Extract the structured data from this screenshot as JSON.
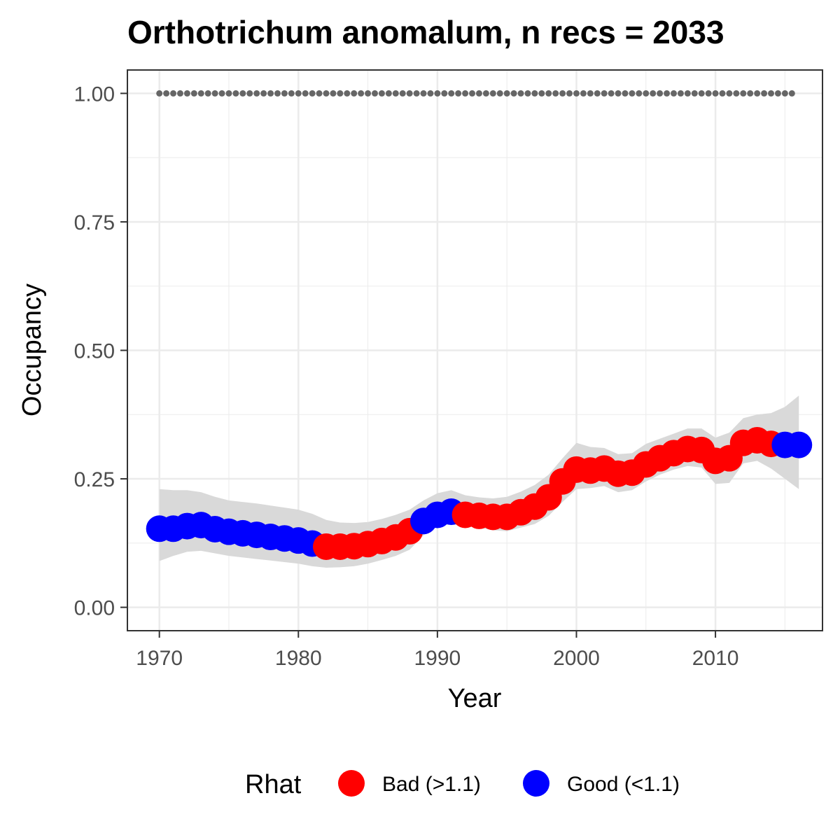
{
  "chart_data": {
    "type": "line",
    "title": "Orthotrichum anomalum, n recs = 2033",
    "xlabel": "Year",
    "ylabel": "Occupancy",
    "xlim": [
      1967.7,
      2017.7
    ],
    "ylim": [
      -0.0455,
      1.0455
    ],
    "x_ticks": [
      1970,
      1980,
      1990,
      2000,
      2010
    ],
    "x_tick_labels": [
      "1970",
      "1980",
      "1990",
      "2000",
      "2010"
    ],
    "y_ticks": [
      0,
      0.25,
      0.5,
      0.75,
      1.0
    ],
    "y_tick_labels": [
      "0.00",
      "0.25",
      "0.50",
      "0.75",
      "1.00"
    ],
    "grid": true,
    "legend_position": "bottom",
    "legend": {
      "title": "Rhat",
      "entries": [
        {
          "label": "Bad (>1.1)",
          "color": "#ff0000"
        },
        {
          "label": "Good (<1.1)",
          "color": "#0000ff"
        }
      ]
    },
    "colors": {
      "bad": "#ff0000",
      "good": "#0000ff",
      "ribbon": "#d9d9d9",
      "dots": "#666666",
      "grid": "#ebebeb",
      "panel_border": "#333333"
    },
    "occupancy": {
      "x": [
        1970,
        1971,
        1972,
        1973,
        1974,
        1975,
        1976,
        1977,
        1978,
        1979,
        1980,
        1981,
        1982,
        1983,
        1984,
        1985,
        1986,
        1987,
        1988,
        1989,
        1990,
        1991,
        1992,
        1993,
        1994,
        1995,
        1996,
        1997,
        1998,
        1999,
        2000,
        2001,
        2002,
        2003,
        2004,
        2005,
        2006,
        2007,
        2008,
        2009,
        2010,
        2011,
        2012,
        2013,
        2014,
        2015,
        2016
      ],
      "y": [
        0.153,
        0.153,
        0.158,
        0.16,
        0.152,
        0.147,
        0.144,
        0.141,
        0.137,
        0.134,
        0.13,
        0.124,
        0.118,
        0.118,
        0.119,
        0.123,
        0.129,
        0.136,
        0.148,
        0.168,
        0.18,
        0.186,
        0.18,
        0.178,
        0.176,
        0.176,
        0.185,
        0.196,
        0.214,
        0.245,
        0.268,
        0.266,
        0.27,
        0.26,
        0.262,
        0.278,
        0.29,
        0.3,
        0.308,
        0.306,
        0.285,
        0.29,
        0.32,
        0.325,
        0.318,
        0.316,
        0.316
      ],
      "rhat": [
        "good",
        "good",
        "good",
        "good",
        "good",
        "good",
        "good",
        "good",
        "good",
        "good",
        "good",
        "good",
        "bad",
        "bad",
        "bad",
        "bad",
        "bad",
        "bad",
        "bad",
        "good",
        "good",
        "good",
        "bad",
        "bad",
        "bad",
        "bad",
        "bad",
        "bad",
        "bad",
        "bad",
        "bad",
        "bad",
        "bad",
        "bad",
        "bad",
        "bad",
        "bad",
        "bad",
        "bad",
        "bad",
        "bad",
        "bad",
        "bad",
        "bad",
        "bad",
        "good",
        "good"
      ],
      "lower": [
        0.09,
        0.1,
        0.108,
        0.11,
        0.105,
        0.1,
        0.097,
        0.094,
        0.091,
        0.088,
        0.085,
        0.08,
        0.077,
        0.078,
        0.08,
        0.085,
        0.092,
        0.1,
        0.112,
        0.14,
        0.158,
        0.162,
        0.158,
        0.155,
        0.15,
        0.148,
        0.155,
        0.162,
        0.178,
        0.205,
        0.23,
        0.232,
        0.236,
        0.224,
        0.228,
        0.245,
        0.258,
        0.268,
        0.275,
        0.272,
        0.24,
        0.242,
        0.28,
        0.285,
        0.27,
        0.25,
        0.23
      ],
      "upper": [
        0.23,
        0.228,
        0.228,
        0.224,
        0.215,
        0.208,
        0.205,
        0.202,
        0.198,
        0.194,
        0.19,
        0.182,
        0.17,
        0.165,
        0.164,
        0.166,
        0.172,
        0.18,
        0.19,
        0.208,
        0.222,
        0.228,
        0.218,
        0.214,
        0.212,
        0.215,
        0.225,
        0.238,
        0.258,
        0.29,
        0.32,
        0.312,
        0.31,
        0.298,
        0.3,
        0.318,
        0.328,
        0.338,
        0.348,
        0.348,
        0.33,
        0.34,
        0.368,
        0.375,
        0.378,
        0.39,
        0.412
      ]
    },
    "reference_line": {
      "x": [
        1970,
        1971,
        1972,
        1973,
        1974,
        1975,
        1976,
        1977,
        1978,
        1979,
        1980,
        1981,
        1982,
        1983,
        1984,
        1985,
        1986,
        1987,
        1988,
        1989,
        1990,
        1991,
        1992,
        1993,
        1994,
        1995,
        1996,
        1997,
        1998,
        1999,
        2000,
        2001,
        2002,
        2003,
        2004,
        2005,
        2006,
        2007,
        2008,
        2009,
        2010,
        2011,
        2012,
        2013,
        2014,
        2015
      ],
      "y": 1.0
    }
  }
}
